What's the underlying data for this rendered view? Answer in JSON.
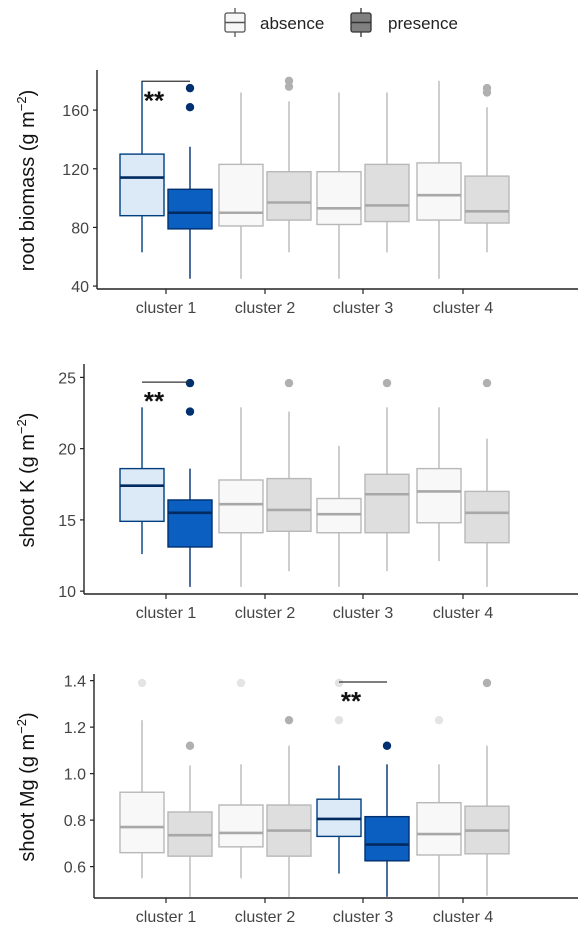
{
  "legend": {
    "position": "top",
    "items": [
      {
        "label": "absence",
        "fill": "#f7f7f7",
        "stroke": "#555555"
      },
      {
        "label": "presence",
        "fill": "#808080",
        "stroke": "#333333"
      }
    ]
  },
  "colors": {
    "highlight_absence_fill": "#dce9f7",
    "highlight_absence_stroke": "#003f7f",
    "highlight_presence_fill": "#0a5fc0",
    "highlight_presence_stroke": "#003070",
    "gray_absence_fill": "#f8f8f8",
    "gray_presence_fill": "#dedede",
    "gray_stroke": "#b8b8b8",
    "axis": "#222222",
    "tick_label": "#444444"
  },
  "chart_data": [
    {
      "type": "boxplot",
      "ylabel_main": "root biomass (g m",
      "ylabel_sup": "−2",
      "ylabel_end": ")",
      "ylim": [
        38,
        186
      ],
      "yticks": [
        40,
        80,
        120,
        160
      ],
      "categories": [
        "cluster 1",
        "cluster 2",
        "cluster 3",
        "cluster 4"
      ],
      "grid": false,
      "boxes": [
        [
          {
            "min": 63,
            "q1": 88,
            "median": 114,
            "q3": 130,
            "max": 180,
            "outliers": [],
            "highlight": true
          },
          {
            "min": 45,
            "q1": 79,
            "median": 90,
            "q3": 106,
            "max": 135,
            "outliers": [
              162,
              175
            ],
            "highlight": true
          }
        ],
        [
          {
            "min": 45,
            "q1": 81,
            "median": 90,
            "q3": 123,
            "max": 172,
            "outliers": [],
            "highlight": false
          },
          {
            "min": 63,
            "q1": 85,
            "median": 97,
            "q3": 118,
            "max": 166,
            "outliers": [
              176,
              180
            ],
            "highlight": false
          }
        ],
        [
          {
            "min": 45,
            "q1": 82,
            "median": 93,
            "q3": 118,
            "max": 172,
            "outliers": [],
            "highlight": false
          },
          {
            "min": 63,
            "q1": 84,
            "median": 95,
            "q3": 123,
            "max": 172,
            "outliers": [],
            "highlight": false
          }
        ],
        [
          {
            "min": 45,
            "q1": 85,
            "median": 102,
            "q3": 124,
            "max": 180,
            "outliers": [],
            "highlight": false
          },
          {
            "min": 63,
            "q1": 83,
            "median": 91,
            "q3": 115,
            "max": 162,
            "outliers": [
              172,
              175
            ],
            "highlight": false
          }
        ]
      ],
      "significance": {
        "cluster_index": 0,
        "label": "**",
        "y": 179
      }
    },
    {
      "type": "boxplot",
      "ylabel_main": "shoot K (g m",
      "ylabel_sup": "−2",
      "ylabel_end": ")",
      "ylim": [
        9.8,
        25.8
      ],
      "yticks": [
        10,
        15,
        20,
        25
      ],
      "categories": [
        "cluster 1",
        "cluster 2",
        "cluster 3",
        "cluster 4"
      ],
      "grid": false,
      "boxes": [
        [
          {
            "min": 12.6,
            "q1": 14.9,
            "median": 17.4,
            "q3": 18.6,
            "max": 22.9,
            "outliers": [],
            "highlight": true
          },
          {
            "min": 10.3,
            "q1": 13.1,
            "median": 15.5,
            "q3": 16.4,
            "max": 18.6,
            "outliers": [
              22.6,
              24.6
            ],
            "highlight": true
          }
        ],
        [
          {
            "min": 10.3,
            "q1": 14.1,
            "median": 16.1,
            "q3": 17.8,
            "max": 22.9,
            "outliers": [],
            "highlight": false
          },
          {
            "min": 11.4,
            "q1": 14.2,
            "median": 15.7,
            "q3": 17.9,
            "max": 22.6,
            "outliers": [
              24.6
            ],
            "highlight": false
          }
        ],
        [
          {
            "min": 10.3,
            "q1": 14.1,
            "median": 15.4,
            "q3": 16.5,
            "max": 20.2,
            "outliers": [],
            "highlight": false
          },
          {
            "min": 11.4,
            "q1": 14.1,
            "median": 16.8,
            "q3": 18.2,
            "max": 22.9,
            "outliers": [
              24.6
            ],
            "highlight": false
          }
        ],
        [
          {
            "min": 12.1,
            "q1": 14.8,
            "median": 17.0,
            "q3": 18.6,
            "max": 22.9,
            "outliers": [],
            "highlight": false
          },
          {
            "min": 10.3,
            "q1": 13.4,
            "median": 15.5,
            "q3": 17.0,
            "max": 20.7,
            "outliers": [
              24.6
            ],
            "highlight": false
          }
        ]
      ],
      "significance": {
        "cluster_index": 0,
        "label": "**",
        "y": 24.6
      }
    },
    {
      "type": "boxplot",
      "ylabel_main": "shoot Mg (g m",
      "ylabel_sup": "−2",
      "ylabel_end": ")",
      "ylim": [
        0.465,
        1.42
      ],
      "yticks": [
        0.6,
        0.8,
        1.0,
        1.2,
        1.4
      ],
      "ytick_labels": [
        "0.6",
        "0.8",
        "1.0",
        "1.2",
        "1.4"
      ],
      "categories": [
        "cluster 1",
        "cluster 2",
        "cluster 3",
        "cluster 4"
      ],
      "grid": false,
      "boxes": [
        [
          {
            "min": 0.55,
            "q1": 0.66,
            "median": 0.77,
            "q3": 0.92,
            "max": 1.23,
            "outliers": [
              1.39
            ],
            "highlight": false
          },
          {
            "min": 0.47,
            "q1": 0.645,
            "median": 0.735,
            "q3": 0.835,
            "max": 1.035,
            "outliers": [
              1.12
            ],
            "highlight": false
          }
        ],
        [
          {
            "min": 0.55,
            "q1": 0.685,
            "median": 0.745,
            "q3": 0.865,
            "max": 1.04,
            "outliers": [
              1.39
            ],
            "highlight": false
          },
          {
            "min": 0.47,
            "q1": 0.645,
            "median": 0.755,
            "q3": 0.865,
            "max": 1.12,
            "outliers": [
              1.23
            ],
            "highlight": false
          }
        ],
        [
          {
            "min": 0.57,
            "q1": 0.73,
            "median": 0.805,
            "q3": 0.89,
            "max": 1.035,
            "outliers": [
              1.23,
              1.39
            ],
            "highlight": true
          },
          {
            "min": 0.47,
            "q1": 0.625,
            "median": 0.695,
            "q3": 0.815,
            "max": 1.04,
            "outliers": [
              1.12
            ],
            "highlight": true
          }
        ],
        [
          {
            "min": 0.47,
            "q1": 0.65,
            "median": 0.74,
            "q3": 0.875,
            "max": 1.04,
            "outliers": [
              1.23
            ],
            "highlight": false
          },
          {
            "min": 0.475,
            "q1": 0.655,
            "median": 0.755,
            "q3": 0.86,
            "max": 1.12,
            "outliers": [
              1.39
            ],
            "highlight": false
          }
        ]
      ],
      "significance": {
        "cluster_index": 2,
        "label": "**",
        "y": 1.39
      }
    }
  ]
}
